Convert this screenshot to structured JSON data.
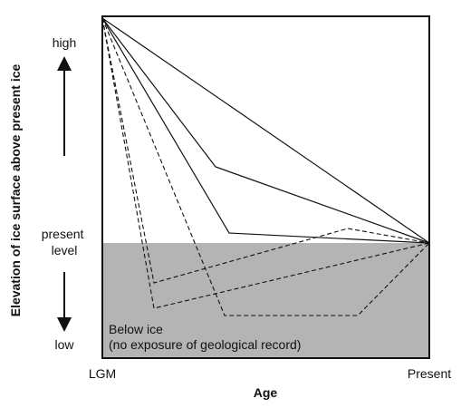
{
  "diagram": {
    "y_axis_label": "Elevation of ice surface above present ice",
    "x_axis_label": "Age",
    "x_start": "LGM",
    "x_end": "Present",
    "y_high": "high",
    "y_present": [
      "present",
      "level"
    ],
    "y_low": "low",
    "below_ice": [
      "Below ice",
      "(no exposure of geological record)"
    ]
  }
}
